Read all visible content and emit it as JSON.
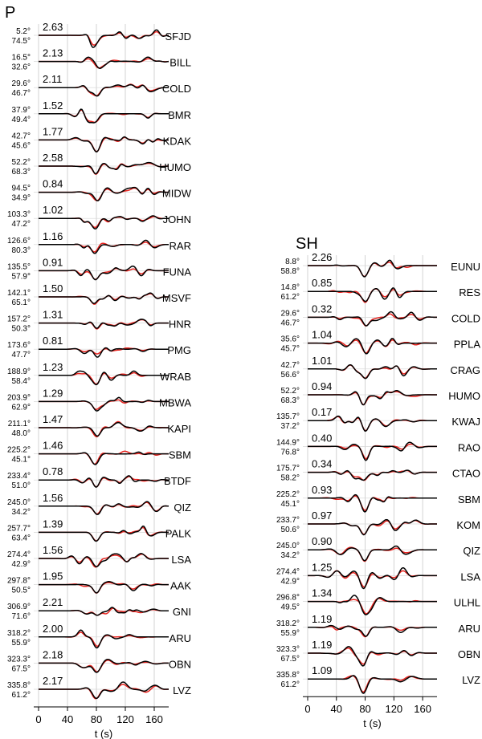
{
  "chart_data": [
    {
      "type": "line",
      "title": "P",
      "xlabel": "t (s)",
      "ylabel": "",
      "xlim": [
        0,
        180
      ],
      "xticks": [
        0,
        40,
        80,
        120,
        160
      ],
      "grid": true,
      "series_colors": {
        "observed": "#000000",
        "synthetic": "#e8231e"
      },
      "stations": [
        {
          "name": "SFJD",
          "amp": "2.63",
          "azimuth": "5.2°",
          "distance": "74.5°"
        },
        {
          "name": "BILL",
          "amp": "2.13",
          "azimuth": "16.5°",
          "distance": "32.6°"
        },
        {
          "name": "COLD",
          "amp": "2.11",
          "azimuth": "29.6°",
          "distance": "46.7°"
        },
        {
          "name": "BMR",
          "amp": "1.52",
          "azimuth": "37.9°",
          "distance": "49.4°"
        },
        {
          "name": "KDAK",
          "amp": "1.77",
          "azimuth": "42.7°",
          "distance": "45.6°"
        },
        {
          "name": "HUMO",
          "amp": "2.58",
          "azimuth": "52.2°",
          "distance": "68.3°"
        },
        {
          "name": "MIDW",
          "amp": "0.84",
          "azimuth": "94.5°",
          "distance": "34.9°"
        },
        {
          "name": "JOHN",
          "amp": "1.02",
          "azimuth": "103.3°",
          "distance": "47.2°"
        },
        {
          "name": "RAR",
          "amp": "1.16",
          "azimuth": "126.6°",
          "distance": "80.3°"
        },
        {
          "name": "FUNA",
          "amp": "0.91",
          "azimuth": "135.5°",
          "distance": "57.9°"
        },
        {
          "name": "MSVF",
          "amp": "1.50",
          "azimuth": "142.1°",
          "distance": "65.1°"
        },
        {
          "name": "HNR",
          "amp": "1.31",
          "azimuth": "157.2°",
          "distance": "50.3°"
        },
        {
          "name": "PMG",
          "amp": "0.81",
          "azimuth": "173.6°",
          "distance": "47.7°"
        },
        {
          "name": "WRAB",
          "amp": "1.23",
          "azimuth": "188.9°",
          "distance": "58.4°"
        },
        {
          "name": "MBWA",
          "amp": "1.29",
          "azimuth": "203.9°",
          "distance": "62.9°"
        },
        {
          "name": "KAPI",
          "amp": "1.47",
          "azimuth": "211.1°",
          "distance": "48.0°"
        },
        {
          "name": "SBM",
          "amp": "1.46",
          "azimuth": "225.2°",
          "distance": "45.1°"
        },
        {
          "name": "BTDF",
          "amp": "0.78",
          "azimuth": "233.4°",
          "distance": "51.0°"
        },
        {
          "name": "QIZ",
          "amp": "1.56",
          "azimuth": "245.0°",
          "distance": "34.2°"
        },
        {
          "name": "PALK",
          "amp": "1.39",
          "azimuth": "257.7°",
          "distance": "63.4°"
        },
        {
          "name": "LSA",
          "amp": "1.56",
          "azimuth": "274.4°",
          "distance": "42.9°"
        },
        {
          "name": "AAK",
          "amp": "1.95",
          "azimuth": "297.8°",
          "distance": "50.5°"
        },
        {
          "name": "GNI",
          "amp": "2.21",
          "azimuth": "306.9°",
          "distance": "71.6°"
        },
        {
          "name": "ARU",
          "amp": "2.00",
          "azimuth": "318.2°",
          "distance": "55.9°"
        },
        {
          "name": "OBN",
          "amp": "2.18",
          "azimuth": "323.3°",
          "distance": "67.5°"
        },
        {
          "name": "LVZ",
          "amp": "2.17",
          "azimuth": "335.8°",
          "distance": "61.2°"
        }
      ]
    },
    {
      "type": "line",
      "title": "SH",
      "xlabel": "t (s)",
      "ylabel": "",
      "xlim": [
        0,
        180
      ],
      "xticks": [
        0,
        40,
        80,
        120,
        160
      ],
      "grid": true,
      "series_colors": {
        "observed": "#000000",
        "synthetic": "#e8231e"
      },
      "stations": [
        {
          "name": "EUNU",
          "amp": "2.26",
          "azimuth": "8.8°",
          "distance": "58.8°"
        },
        {
          "name": "RES",
          "amp": "0.85",
          "azimuth": "14.8°",
          "distance": "61.2°"
        },
        {
          "name": "COLD",
          "amp": "0.32",
          "azimuth": "29.6°",
          "distance": "46.7°"
        },
        {
          "name": "PPLA",
          "amp": "1.04",
          "azimuth": "35.6°",
          "distance": "45.7°"
        },
        {
          "name": "CRAG",
          "amp": "1.01",
          "azimuth": "42.7°",
          "distance": "56.6°"
        },
        {
          "name": "HUMO",
          "amp": "0.94",
          "azimuth": "52.2°",
          "distance": "68.3°"
        },
        {
          "name": "KWAJ",
          "amp": "0.17",
          "azimuth": "135.7°",
          "distance": "37.2°"
        },
        {
          "name": "RAO",
          "amp": "0.40",
          "azimuth": "144.9°",
          "distance": "76.8°"
        },
        {
          "name": "CTAO",
          "amp": "0.34",
          "azimuth": "175.7°",
          "distance": "58.2°"
        },
        {
          "name": "SBM",
          "amp": "0.93",
          "azimuth": "225.2°",
          "distance": "45.1°"
        },
        {
          "name": "KOM",
          "amp": "0.97",
          "azimuth": "233.7°",
          "distance": "50.6°"
        },
        {
          "name": "QIZ",
          "amp": "0.90",
          "azimuth": "245.0°",
          "distance": "34.2°"
        },
        {
          "name": "LSA",
          "amp": "1.25",
          "azimuth": "274.4°",
          "distance": "42.9°"
        },
        {
          "name": "ULHL",
          "amp": "1.34",
          "azimuth": "296.8°",
          "distance": "49.5°"
        },
        {
          "name": "ARU",
          "amp": "1.19",
          "azimuth": "318.2°",
          "distance": "55.9°"
        },
        {
          "name": "OBN",
          "amp": "1.19",
          "azimuth": "323.3°",
          "distance": "67.5°"
        },
        {
          "name": "LVZ",
          "amp": "1.09",
          "azimuth": "335.8°",
          "distance": "61.2°"
        }
      ]
    }
  ]
}
